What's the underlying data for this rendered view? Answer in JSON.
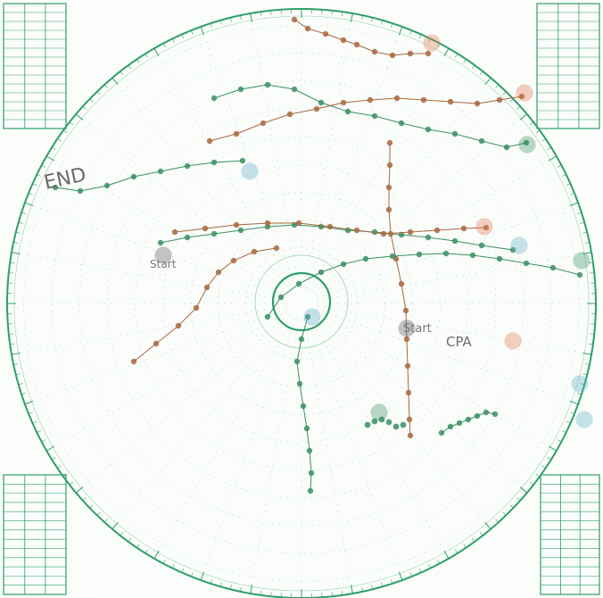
{
  "colors": {
    "paper": "#fbfdfb",
    "plot_lines": "#2e9e6a",
    "plot_light": "#8fd3b0",
    "track_green": "#3b8f62",
    "track_brown": "#a8673f",
    "marker_orange": "#e07a4f",
    "marker_teal": "#5fb0c8",
    "pencil": "#5a5a5a"
  },
  "annotations": {
    "end_label": "END",
    "start_label_1": "Start",
    "start_label_2": "Start",
    "cpa_label": "CPA"
  },
  "tracks": [
    {
      "id": "track-top-brown",
      "color": "track_brown"
    },
    {
      "id": "track-upper-green",
      "color": "track_green"
    },
    {
      "id": "track-upper-brown",
      "color": "track_brown"
    },
    {
      "id": "track-end-green",
      "color": "track_green"
    },
    {
      "id": "track-mid-green",
      "color": "track_green"
    },
    {
      "id": "track-mid-brown",
      "color": "track_brown"
    },
    {
      "id": "track-vertical-brown",
      "color": "track_brown"
    },
    {
      "id": "track-diagonal-brown",
      "color": "track_brown"
    },
    {
      "id": "track-center-green",
      "color": "track_green"
    },
    {
      "id": "track-south-green",
      "color": "track_green"
    },
    {
      "id": "track-lower-right-green",
      "color": "track_green"
    }
  ]
}
